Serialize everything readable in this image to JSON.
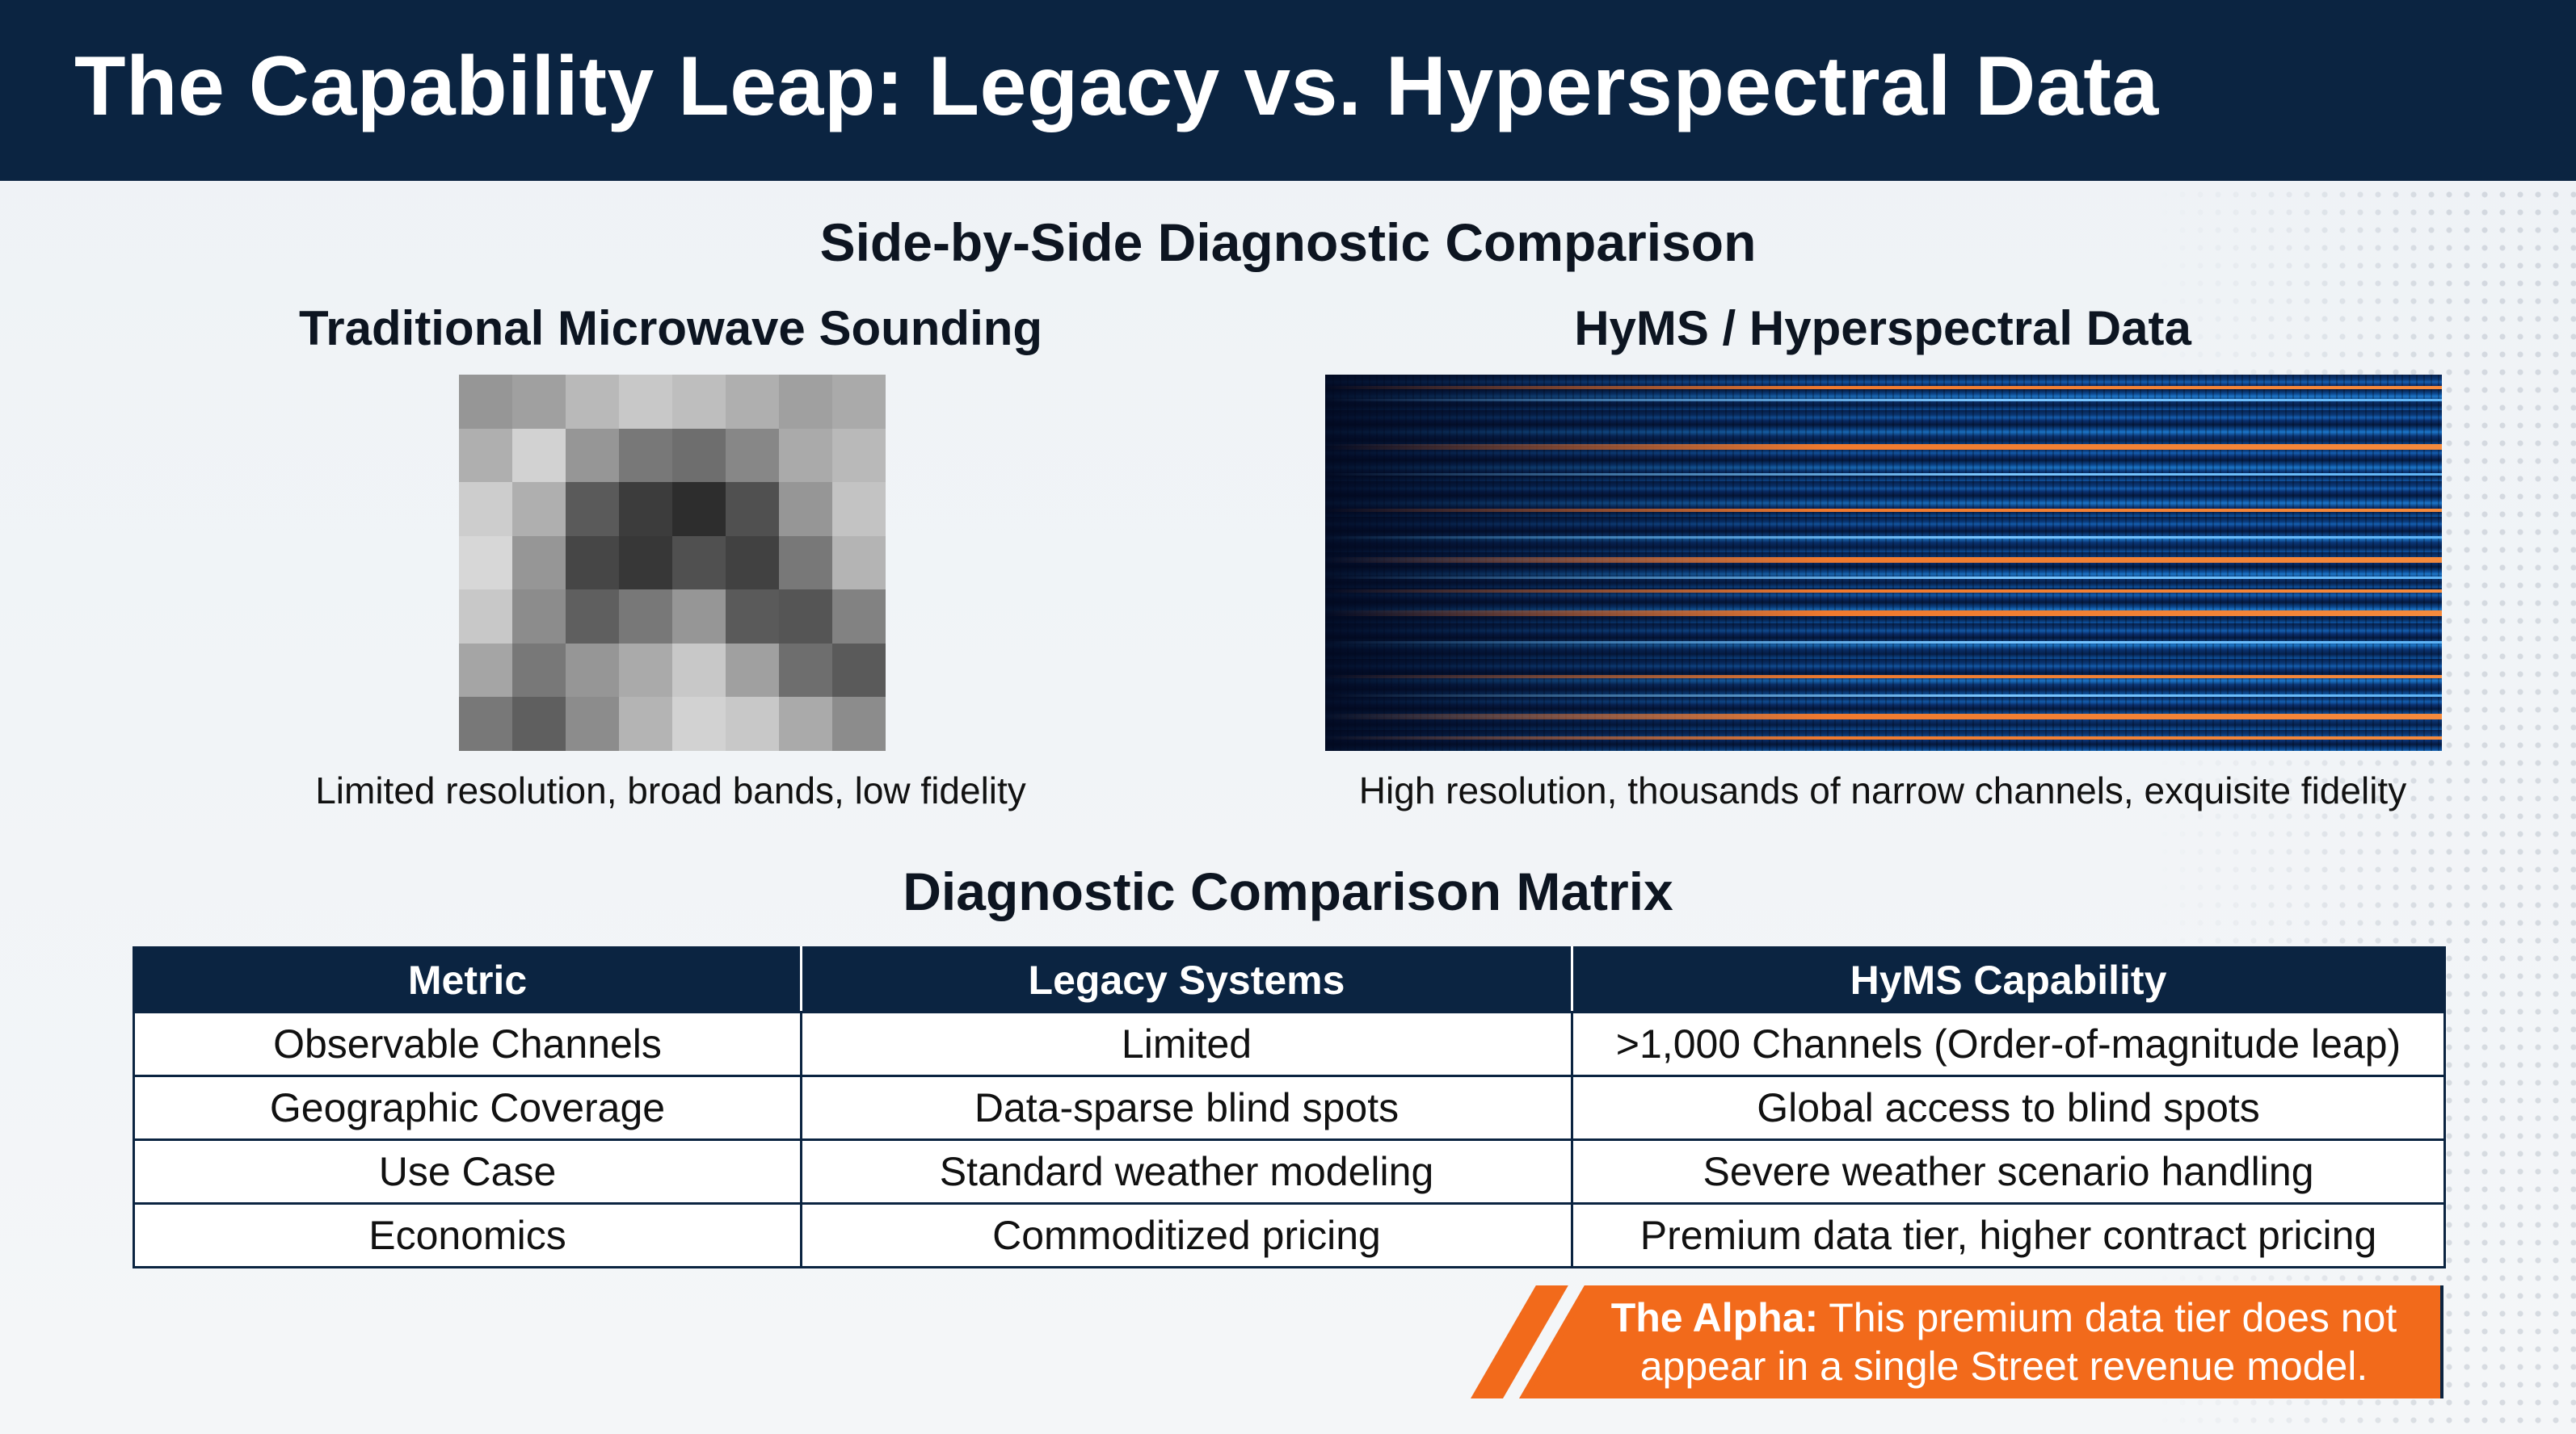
{
  "slide": {
    "title": "The Capability Leap: Legacy vs. Hyperspectral Data"
  },
  "comparison": {
    "title": "Side-by-Side Diagnostic Comparison",
    "legacy": {
      "title": "Traditional Microwave Sounding",
      "caption": "Limited resolution, broad bands, low fidelity"
    },
    "hyms": {
      "title": "HyMS / Hyperspectral Data",
      "caption": "High resolution, thousands of narrow channels, exquisite fidelity"
    }
  },
  "matrix": {
    "title": "Diagnostic Comparison Matrix",
    "headers": [
      "Metric",
      "Legacy Systems",
      "HyMS Capability"
    ],
    "rows": [
      [
        "Observable Channels",
        "Limited",
        ">1,000 Channels (Order-of-magnitude leap)"
      ],
      [
        "Geographic Coverage",
        "Data-sparse blind spots",
        "Global access to blind spots"
      ],
      [
        "Use Case",
        "Standard weather modeling",
        "Severe weather scenario handling"
      ],
      [
        "Economics",
        "Commoditized pricing",
        "Premium data tier, higher contract pricing"
      ]
    ]
  },
  "callout": {
    "label": "The Alpha:",
    "text": "This premium data tier does not appear in a single Street revenue model."
  },
  "colors": {
    "navy": "#0b2441",
    "accent_orange": "#f26a1b"
  }
}
